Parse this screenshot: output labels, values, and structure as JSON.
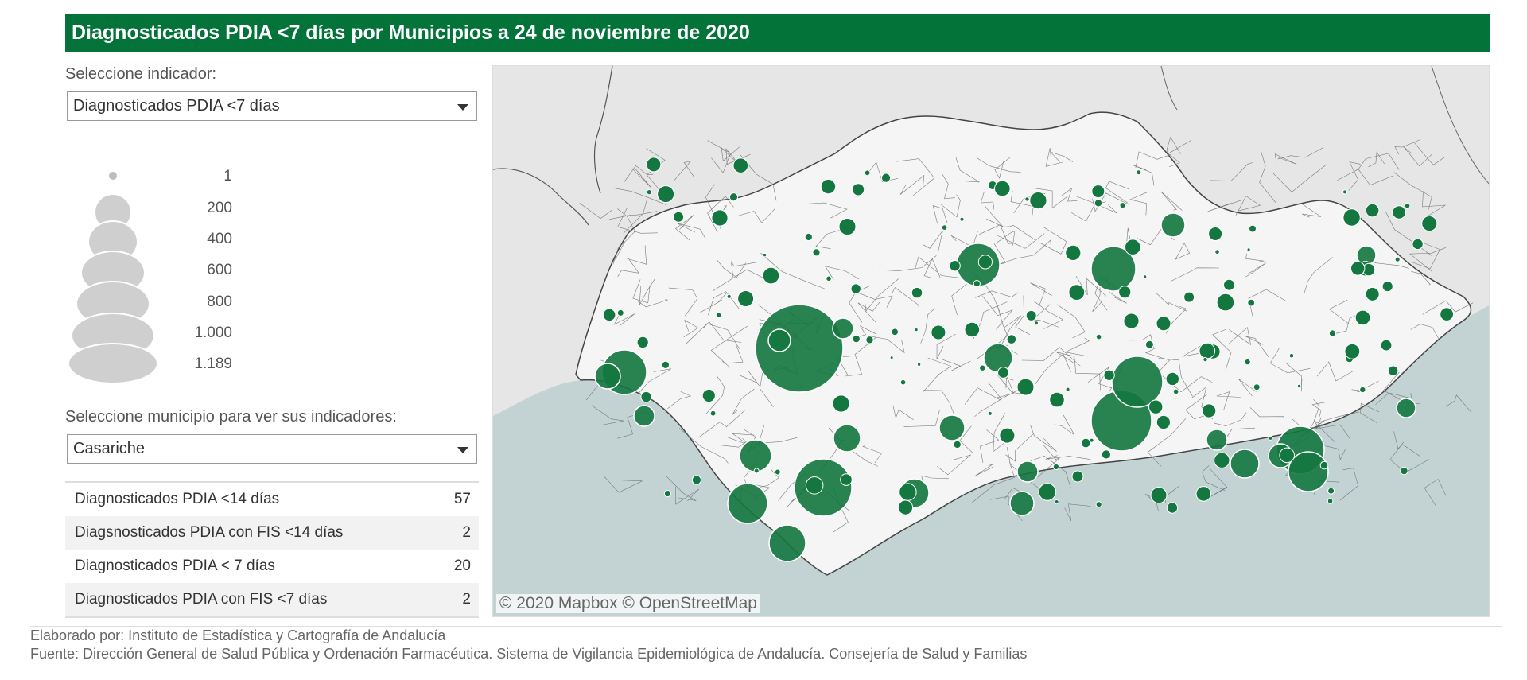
{
  "title": "Diagnosticados PDIA <7 días por Municipios a 24 de noviembre de 2020",
  "indicator": {
    "label": "Seleccione indicador:",
    "selected": "Diagnosticados PDIA <7 días"
  },
  "legend": {
    "values": [
      "1",
      "200",
      "400",
      "600",
      "800",
      "1.000",
      "1.189"
    ],
    "bubble_color": "#cfcfcf"
  },
  "municipality": {
    "label": "Seleccione municipio para ver sus indicadores:",
    "selected": "Casariche"
  },
  "indicators": [
    {
      "name": "Diagnosticados PDIA <14 días",
      "value": "57"
    },
    {
      "name": "Diagsnosticados PDIA con FIS <14 días",
      "value": "2"
    },
    {
      "name": "Diagnosticados PDIA < 7 días",
      "value": "20"
    },
    {
      "name": "Diagnosticados PDIA con FIS <7 días",
      "value": "2"
    }
  ],
  "map": {
    "attribution": "© 2020 Mapbox  © OpenStreetMap",
    "land_color": "#e4e4e4",
    "region_color": "#f4f4f4",
    "sea_color": "#c3d3d3",
    "bubble_color": "#13773f"
  },
  "footer": {
    "line1": "Elaborado por: Instituto de Estadística y Cartografía de Andalucía",
    "line2": "Fuente: Dirección General de Salud Pública y Ordenación Farmacéutica. Sistema de Vigilancia Epidemiológica de Andalucía. Consejería de Salud y Familias"
  },
  "colors": {
    "title_bg": "#03733a",
    "title_text": "#ffffff"
  }
}
